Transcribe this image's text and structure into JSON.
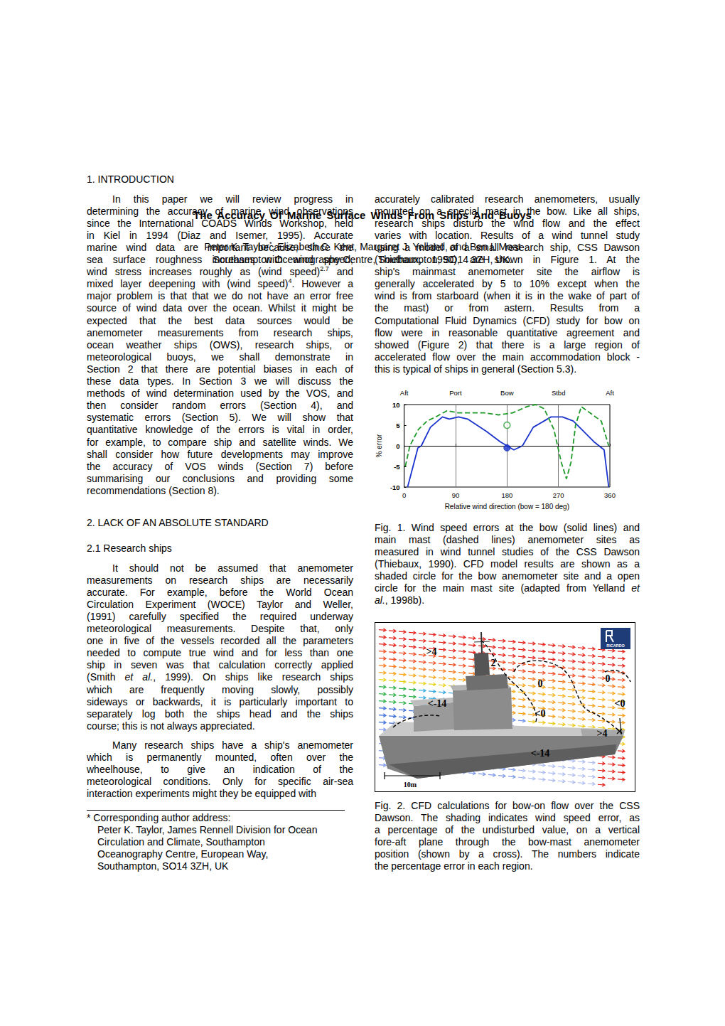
{
  "document": {
    "title": "The Accuracy Of Marine Surface Winds From Ships And Buoys",
    "authors": [
      "Peter K. Taylor",
      {
        "sup": "*"
      },
      ",  Elizabeth C. Kent,  Margaret J. Yelland,  and Ben I. Moat"
    ],
    "affiliation": "Southampton Oceanography Centre,  Southampton,  SO14 3ZH,  UK.",
    "introduction": {
      "heading": "1.  INTRODUCTION",
      "paragraph": [
        "In this paper we will review progress in",
        "determining the accuracy of marine wind observations",
        "since the International COADS Winds Workshop, held",
        "in Kiel in 1994 (Diaz and Isemer, 1995).  Accurate",
        "marine wind data are important because, since the",
        "sea surface roughness increases with wind speed,",
        [
          "wind stress increases roughly as (wind speed)",
          {
            "sup": "2.7"
          },
          " and"
        ],
        [
          "mixed layer deepening with (wind speed)",
          {
            "sup": "4"
          },
          ".  However a"
        ],
        "major problem is that that we do not have an error free",
        "source of wind data over the ocean.  Whilst it might be",
        "expected that the best data sources would be",
        "anemometer measurements from research ships,",
        "ocean weather ships (OWS),  research ships,  or",
        "meteorological buoys,  we shall demonstrate in",
        "Section 2 that there are potential biases in each of",
        "these data types.  In Section 3 we will discuss the",
        "methods of wind determination used by the VOS,  and",
        "then consider random errors (Section 4),  and",
        "systematic errors (Section 5).  We will show that",
        "quantitative knowledge of the errors is vital in order,",
        "for example,  to compare ship and satellite winds.  We",
        "shall consider how future developments may improve",
        "the accuracy of VOS winds (Section 7) before",
        "summarising our conclusions and providing some",
        "recommendations (Section 8)."
      ]
    },
    "standard": {
      "heading": "2. LACK OF AN ABSOLUTE STANDARD",
      "subheading": "2.1  Research ships",
      "paragraphs": [
        [
          "It should not be assumed that anemometer",
          "measurements on research ships are necessarily",
          "accurate.  For example,  before the World Ocean",
          "Circulation Experiment (WOCE)  Taylor and Weller,",
          "(1991) carefully specified the required underway",
          "meteorological measurements.  Despite that,  only",
          "one in five of the vessels recorded all the parameters",
          "needed to compute true wind and for less than one",
          "ship in seven was that calculation correctly applied",
          [
            "(Smith ",
            {
              "i": "et al."
            },
            ", 1999).   On ships like research ships"
          ],
          "which are frequently moving slowly,   possibly",
          "sideways or backwards,  it is particularly important to",
          "separately log both the ships head and the ships",
          "course;  this is not always appreciated."
        ],
        [
          "Many research ships have a ship's anemometer",
          "which is permanently mounted,  often over the",
          "wheelhouse,  to give an indication of the",
          "meteorological conditions.  Only for specific air-sea",
          "interaction experiments might they be equipped with"
        ]
      ],
      "continuation": [
        "accurately calibrated research anemometers,  usually",
        "mounted on a special mast in the bow.  Like all ships,",
        "research ships disturb the wind flow and the effect",
        "varies with location.  Results of a wind tunnel study",
        "using a model of a small research ship,  CSS Dawson",
        "(Thiebaux, 1990),   are shown in Figure 1.   At the",
        "ship's mainmast anemometer site the airflow is",
        "generally accelerated by 5 to 10% except when the",
        "wind is from starboard (when it is in the wake of part of",
        "the mast)  or  from  astern.    Results  from  a",
        "Computational Fluid Dynamics (CFD) study for bow on",
        "flow were in reasonable quantitative agreement and",
        "showed  (Figure 2)  that there is a large region of",
        "accelerated flow over the main accommodation block -",
        "this is typical of ships in general (Section 5.3)."
      ]
    },
    "footnote": [
      "* Corresponding author address:",
      "Peter K. Taylor,  James Rennell Division for Ocean",
      "Circulation and Climate,  Southampton",
      "Oceanography Centre,  European Way,",
      "Southampton,  SO14 3ZH,  UK"
    ],
    "figure1_caption": [
      "Fig. 1.   Wind speed errors at the bow (solid lines) and",
      "main mast  (dashed lines)  anemometer sites  as",
      "measured in wind tunnel studies of the CSS Dawson",
      "(Thiebaux, 1990).  CFD model results are shown as a",
      "shaded circle for the bow anemometer site and a open",
      [
        "circle for the main mast site (adapted from Yelland ",
        {
          "i": "et"
        }
      ],
      [
        {
          "i": "al."
        },
        ", 1998b)."
      ]
    ],
    "figure2": {
      "annotations": [
        ">4",
        "2",
        "0",
        "0",
        "<-14",
        "<0",
        "<0",
        ">4",
        "<-14"
      ],
      "scale_label": "10m",
      "logo": "RICARDO",
      "caption": [
        "Fig. 2.  CFD calculations for bow-on flow over the CSS",
        "Dawson.   The shading indicates wind speed error,  as",
        "a percentage of the undisturbed value,  on a vertical",
        "fore-aft  plane  through  the  bow-mast  anemometer",
        "position (shown by a cross).    The numbers indicate",
        "the percentage error in each region."
      ]
    }
  },
  "chart_data": {
    "type": "line",
    "top_labels": [
      {
        "value": 0,
        "label": "Aft"
      },
      {
        "value": 90,
        "label": "Port"
      },
      {
        "value": 180,
        "label": "Bow"
      },
      {
        "value": 270,
        "label": "Stbd"
      },
      {
        "value": 360,
        "label": "Aft"
      }
    ],
    "x_label": "Relative wind direction (bow = 180 deg)",
    "y_label": "% error",
    "xlim": [
      0,
      360
    ],
    "xticks": [
      0,
      90,
      180,
      270,
      360
    ],
    "ylim": [
      -10,
      10
    ],
    "yticks": [
      -10,
      -5,
      0,
      5,
      10
    ],
    "grid": "x",
    "zero_line": 0,
    "series": [
      {
        "type": "line",
        "color": "#1a33cc",
        "line_style": "solid",
        "x": [
          6,
          24,
          30,
          46,
          67,
          79,
          95,
          111,
          144,
          168,
          192,
          207,
          226,
          257,
          277,
          296,
          332,
          350,
          358
        ],
        "values": [
          -10,
          -0.5,
          0,
          4.5,
          7,
          6.5,
          7,
          6.5,
          3.5,
          1,
          -1,
          0,
          4.5,
          7,
          7,
          6,
          1,
          -1,
          -10
        ]
      },
      {
        "type": "line",
        "color": "#1f9a2a",
        "line_style": "dashed",
        "x": [
          2,
          10,
          25,
          40,
          55,
          75,
          95,
          115,
          140,
          165,
          190,
          215,
          230,
          245,
          262,
          275,
          284,
          292,
          300,
          310,
          325,
          345,
          358
        ],
        "values": [
          -5,
          0,
          4,
          6,
          7,
          8.5,
          8,
          8,
          8,
          7.5,
          8,
          9.5,
          10,
          9,
          4,
          -4,
          -8,
          -4,
          5,
          9.5,
          8,
          6,
          0
        ]
      },
      {
        "type": "scatter",
        "color": "#1a33cc",
        "marker": "filled",
        "x": [
          180
        ],
        "values": [
          -0.5
        ]
      },
      {
        "type": "scatter",
        "color": "#1f9a2a",
        "marker": "open",
        "x": [
          180
        ],
        "values": [
          5
        ]
      }
    ]
  }
}
